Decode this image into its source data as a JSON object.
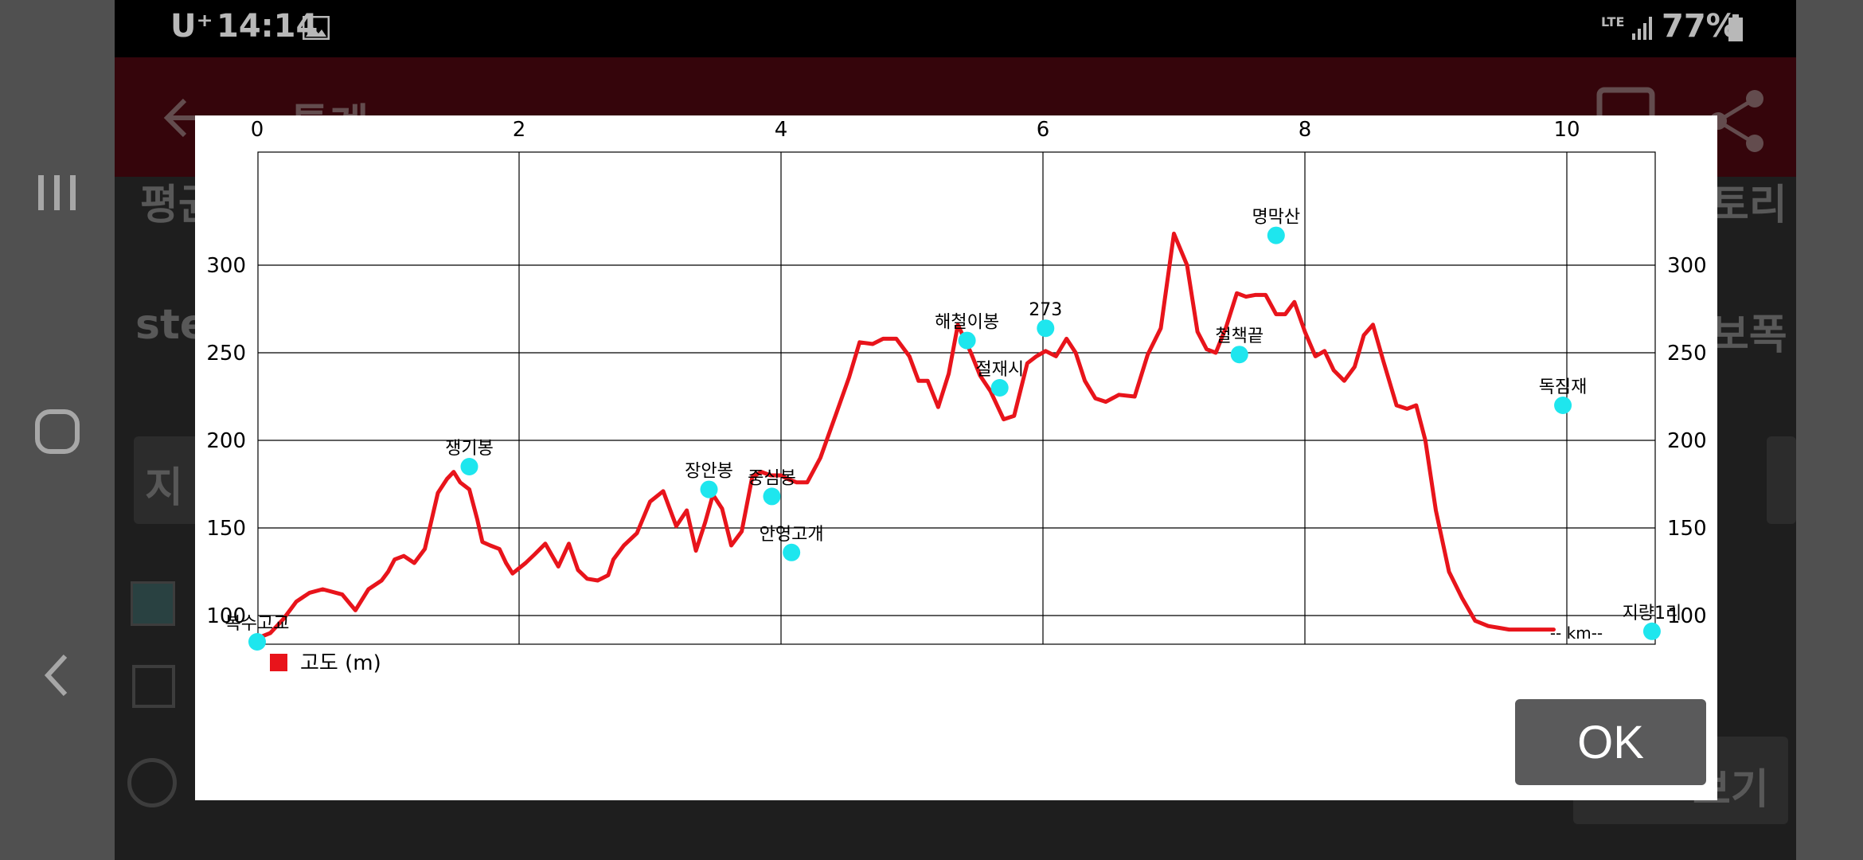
{
  "status_bar": {
    "carrier": "U⁺",
    "time": "14:14",
    "network": "LTE",
    "battery": "77%"
  },
  "app_bar": {
    "title": "통계"
  },
  "background": {
    "label_left_1": "평균",
    "label_left_2": "ste",
    "label_right_1": "토리",
    "label_right_2": "보폭",
    "field_left": "지",
    "button_right": "보기"
  },
  "dialog": {
    "ok_label": "OK",
    "legend": {
      "label": "고도 (m)",
      "color": "#e8141b"
    },
    "km_label": "-- km--"
  },
  "chart_data": {
    "type": "line",
    "x_ticks": [
      "0",
      "2",
      "4",
      "6",
      "8",
      "10"
    ],
    "y_ticks": [
      "100",
      "150",
      "200",
      "250",
      "300"
    ],
    "xlim": [
      0,
      10.6
    ],
    "ylim": [
      62,
      345
    ],
    "grid": true,
    "legend_position": "bottom-left",
    "series": [
      {
        "name": "고도 (m)",
        "color": "#e8141b",
        "x": [
          0,
          0.1,
          0.2,
          0.3,
          0.4,
          0.5,
          0.65,
          0.75,
          0.85,
          0.95,
          1.0,
          1.05,
          1.12,
          1.2,
          1.28,
          1.38,
          1.45,
          1.5,
          1.55,
          1.62,
          1.68,
          1.72,
          1.78,
          1.85,
          1.9,
          1.95,
          2.05,
          2.12,
          2.2,
          2.3,
          2.38,
          2.45,
          2.52,
          2.6,
          2.68,
          2.72,
          2.8,
          2.9,
          3.0,
          3.1,
          3.2,
          3.28,
          3.35,
          3.42,
          3.48,
          3.55,
          3.62,
          3.7,
          3.78,
          3.85,
          3.92,
          4.0,
          4.05,
          4.12,
          4.2,
          4.3,
          4.42,
          4.52,
          4.6,
          4.7,
          4.78,
          4.88,
          4.98,
          5.05,
          5.12,
          5.2,
          5.28,
          5.35,
          5.45,
          5.52,
          5.6,
          5.7,
          5.78,
          5.88,
          5.95,
          6.02,
          6.1,
          6.18,
          6.25,
          6.32,
          6.4,
          6.48,
          6.58,
          6.7,
          6.8,
          6.9,
          7.0,
          7.1,
          7.18,
          7.25,
          7.32,
          7.4,
          7.48,
          7.55,
          7.62,
          7.7,
          7.78,
          7.85,
          7.92,
          8.0,
          8.08,
          8.15,
          8.22,
          8.3,
          8.38,
          8.45,
          8.52,
          8.6,
          8.7,
          8.78,
          8.85,
          8.92,
          9.0,
          9.1,
          9.2,
          9.3,
          9.4,
          9.48,
          9.56,
          9.64,
          9.72,
          9.8,
          9.9
        ],
        "y": [
          87,
          90,
          98,
          108,
          113,
          115,
          112,
          103,
          115,
          120,
          125,
          132,
          134,
          130,
          138,
          170,
          178,
          182,
          176,
          172,
          155,
          142,
          140,
          138,
          130,
          124,
          130,
          135,
          141,
          128,
          141,
          126,
          121,
          120,
          123,
          132,
          140,
          147,
          165,
          171,
          151,
          160,
          137,
          153,
          169,
          161,
          140,
          148,
          179,
          182,
          180,
          180,
          178,
          176,
          176,
          190,
          215,
          236,
          256,
          255,
          258,
          258,
          248,
          234,
          234,
          219,
          238,
          266,
          250,
          237,
          228,
          212,
          214,
          244,
          248,
          251,
          248,
          258,
          250,
          234,
          224,
          222,
          226,
          225,
          249,
          264,
          318,
          300,
          262,
          252,
          250,
          265,
          284,
          282,
          283,
          283,
          272,
          272,
          279,
          262,
          248,
          251,
          240,
          234,
          242,
          260,
          266,
          245,
          220,
          218,
          220,
          200,
          160,
          125,
          110,
          97,
          94,
          93,
          92,
          92,
          92,
          92,
          92
        ]
      }
    ],
    "waypoints": [
      {
        "name": "복수고교",
        "x": 0.0,
        "y": 85
      },
      {
        "name": "쟁기봉",
        "x": 1.62,
        "y": 185
      },
      {
        "name": "장안봉",
        "x": 3.45,
        "y": 172
      },
      {
        "name": "중심봉",
        "x": 3.93,
        "y": 168
      },
      {
        "name": "안영고개",
        "x": 4.08,
        "y": 136
      },
      {
        "name": "해철이봉",
        "x": 5.42,
        "y": 257
      },
      {
        "name": "절재시",
        "x": 5.67,
        "y": 230
      },
      {
        "name": "273",
        "x": 6.02,
        "y": 264
      },
      {
        "name": "철책끝",
        "x": 7.5,
        "y": 249
      },
      {
        "name": "명막산",
        "x": 7.78,
        "y": 317
      },
      {
        "name": "독짐재",
        "x": 9.97,
        "y": 220
      },
      {
        "name": "지량1리",
        "x": 10.65,
        "y": 91
      }
    ]
  }
}
